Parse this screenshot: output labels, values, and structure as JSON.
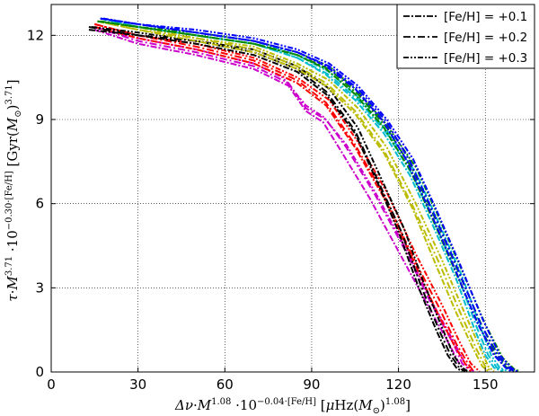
{
  "chart_data": {
    "type": "line",
    "xlabel": "Δν·M^1.08 ·10^−0.04·[Fe/H] [μHz(M⊙)^1.08]",
    "ylabel": "τ·M^3.71 ·10^−0.30·[Fe/H] [Gyr(M⊙)^3.71]",
    "xlim": [
      0,
      167
    ],
    "ylim": [
      0,
      13.1
    ],
    "xticks": [
      "0",
      "30",
      "60",
      "90",
      "120",
      "150"
    ],
    "xtick_values": [
      0,
      30,
      60,
      90,
      120,
      150
    ],
    "yticks": [
      "0",
      "3",
      "6",
      "9",
      "12"
    ],
    "ytick_values": [
      0,
      3,
      6,
      9,
      12
    ],
    "grid": true,
    "legend_placement": "top-right",
    "legend": [
      {
        "label": "[Fe/H] = +0.1",
        "dash": "dashdot1"
      },
      {
        "label": "[Fe/H] = +0.2",
        "dash": "dashdot2"
      },
      {
        "label": "[Fe/H] = +0.3",
        "dash": "dashdot3"
      }
    ],
    "series": [
      {
        "color": "#cc00cc",
        "dash": "dashdot1",
        "x": [
          15,
          30,
          50,
          70,
          82,
          88,
          94,
          100,
          110,
          120,
          130,
          138,
          141,
          143
        ],
        "y": [
          12.2,
          11.7,
          11.3,
          10.8,
          10.2,
          9.3,
          8.9,
          7.9,
          6.2,
          4.3,
          2.4,
          0.9,
          0.3,
          0.02
        ]
      },
      {
        "color": "#cc00cc",
        "dash": "dashdot2",
        "x": [
          15,
          30,
          50,
          70,
          82,
          88,
          95,
          102,
          112,
          122,
          131,
          139,
          142,
          145
        ],
        "y": [
          12.3,
          11.8,
          11.4,
          10.9,
          10.3,
          9.4,
          9.0,
          8.0,
          6.3,
          4.4,
          2.5,
          1.0,
          0.3,
          0.02
        ]
      },
      {
        "color": "#cc00cc",
        "dash": "dashdot3",
        "x": [
          15,
          30,
          50,
          70,
          80,
          88,
          94,
          102,
          112,
          122,
          131,
          139,
          143,
          146
        ],
        "y": [
          12.3,
          11.9,
          11.5,
          11.0,
          10.5,
          9.5,
          9.1,
          8.1,
          6.4,
          4.5,
          2.6,
          1.1,
          0.3,
          0.02
        ]
      },
      {
        "color": "#ff0000",
        "dash": "dashdot1",
        "x": [
          15,
          30,
          50,
          70,
          85,
          95,
          105,
          115,
          125,
          133,
          139,
          143,
          145
        ],
        "y": [
          12.3,
          11.9,
          11.5,
          11.0,
          10.3,
          9.5,
          8.0,
          6.2,
          4.0,
          2.2,
          1.0,
          0.3,
          0.02
        ]
      },
      {
        "color": "#ff0000",
        "dash": "dashdot2",
        "x": [
          15,
          30,
          50,
          70,
          85,
          95,
          105,
          115,
          125,
          134,
          140,
          144,
          146
        ],
        "y": [
          12.4,
          12.0,
          11.6,
          11.1,
          10.4,
          9.6,
          8.1,
          6.3,
          4.1,
          2.3,
          1.0,
          0.3,
          0.02
        ]
      },
      {
        "color": "#ff0000",
        "dash": "dashdot3",
        "x": [
          15,
          30,
          50,
          70,
          85,
          96,
          106,
          116,
          126,
          135,
          141,
          145,
          148
        ],
        "y": [
          12.4,
          12.0,
          11.7,
          11.2,
          10.5,
          9.7,
          8.2,
          6.4,
          4.2,
          2.4,
          1.1,
          0.3,
          0.02
        ]
      },
      {
        "color": "#000000",
        "dash": "dashdot1",
        "x": [
          13,
          30,
          50,
          70,
          85,
          95,
          105,
          113,
          120,
          127,
          133,
          137,
          140,
          142
        ],
        "y": [
          12.2,
          12.0,
          11.7,
          11.3,
          10.7,
          9.9,
          8.5,
          6.7,
          5.0,
          3.0,
          1.5,
          0.6,
          0.15,
          0.02
        ]
      },
      {
        "color": "#000000",
        "dash": "dashdot2",
        "x": [
          13,
          30,
          50,
          70,
          85,
          95,
          105,
          113,
          121,
          128,
          134,
          138,
          141,
          143
        ],
        "y": [
          12.3,
          12.0,
          11.8,
          11.4,
          10.8,
          10.0,
          8.6,
          6.8,
          5.0,
          3.0,
          1.5,
          0.6,
          0.15,
          0.02
        ]
      },
      {
        "color": "#000000",
        "dash": "dashdot3",
        "x": [
          14,
          30,
          50,
          70,
          85,
          96,
          106,
          114,
          122,
          129,
          135,
          139,
          142,
          144
        ],
        "y": [
          12.3,
          12.1,
          11.8,
          11.5,
          10.9,
          10.1,
          8.7,
          6.9,
          5.1,
          3.1,
          1.6,
          0.6,
          0.15,
          0.02
        ]
      },
      {
        "color": "#bbbb00",
        "dash": "dashdot1",
        "x": [
          16,
          30,
          50,
          70,
          85,
          95,
          105,
          115,
          125,
          133,
          140,
          146,
          149,
          151
        ],
        "y": [
          12.5,
          12.2,
          11.8,
          11.4,
          10.8,
          10.2,
          9.2,
          7.8,
          5.8,
          3.8,
          2.1,
          0.8,
          0.2,
          0.02
        ]
      },
      {
        "color": "#bbbb00",
        "dash": "dashdot2",
        "x": [
          16,
          30,
          50,
          70,
          85,
          95,
          105,
          115,
          125,
          134,
          141,
          147,
          150,
          152
        ],
        "y": [
          12.5,
          12.2,
          11.9,
          11.5,
          10.9,
          10.3,
          9.3,
          7.9,
          5.9,
          3.9,
          2.2,
          0.8,
          0.2,
          0.02
        ]
      },
      {
        "color": "#bbbb00",
        "dash": "dashdot3",
        "x": [
          17,
          30,
          50,
          70,
          85,
          96,
          106,
          116,
          126,
          135,
          142,
          148,
          151,
          153
        ],
        "y": [
          12.5,
          12.3,
          11.9,
          11.6,
          11.0,
          10.4,
          9.4,
          8.0,
          6.0,
          4.0,
          2.3,
          0.9,
          0.2,
          0.02
        ]
      },
      {
        "color": "#00bbcc",
        "dash": "dashdot1",
        "x": [
          17,
          30,
          50,
          70,
          85,
          95,
          105,
          115,
          124,
          132,
          140,
          146,
          150,
          153,
          156
        ],
        "y": [
          12.6,
          12.3,
          12.0,
          11.7,
          11.2,
          10.6,
          9.7,
          8.5,
          7.0,
          5.2,
          3.3,
          1.6,
          0.6,
          0.15,
          0.02
        ]
      },
      {
        "color": "#00bbcc",
        "dash": "dashdot2",
        "x": [
          17,
          30,
          50,
          70,
          85,
          96,
          106,
          116,
          125,
          133,
          141,
          147,
          151,
          154,
          157
        ],
        "y": [
          12.6,
          12.3,
          12.0,
          11.7,
          11.2,
          10.6,
          9.7,
          8.5,
          7.0,
          5.2,
          3.3,
          1.6,
          0.6,
          0.15,
          0.02
        ]
      },
      {
        "color": "#00bbcc",
        "dash": "dashdot3",
        "x": [
          18,
          30,
          50,
          70,
          85,
          96,
          106,
          116,
          126,
          134,
          142,
          148,
          152,
          155,
          158
        ],
        "y": [
          12.6,
          12.4,
          12.1,
          11.8,
          11.3,
          10.7,
          9.8,
          8.6,
          7.1,
          5.3,
          3.4,
          1.7,
          0.6,
          0.15,
          0.02
        ]
      },
      {
        "color": "#008800",
        "dash": "dashdot1",
        "x": [
          16,
          30,
          50,
          70,
          85,
          95,
          105,
          115,
          124,
          132,
          140,
          148,
          154,
          158,
          160
        ],
        "y": [
          12.5,
          12.3,
          12.0,
          11.7,
          11.3,
          10.8,
          9.9,
          8.7,
          7.2,
          5.4,
          3.5,
          1.6,
          0.5,
          0.1,
          0.02
        ]
      },
      {
        "color": "#008800",
        "dash": "dashdot2",
        "x": [
          16,
          30,
          50,
          70,
          85,
          96,
          106,
          116,
          125,
          133,
          141,
          149,
          155,
          159,
          161
        ],
        "y": [
          12.5,
          12.3,
          12.0,
          11.7,
          11.3,
          10.8,
          9.9,
          8.7,
          7.2,
          5.4,
          3.5,
          1.6,
          0.5,
          0.1,
          0.02
        ]
      },
      {
        "color": "#008800",
        "dash": "dashdot3",
        "x": [
          17,
          30,
          50,
          70,
          85,
          96,
          106,
          116,
          126,
          134,
          142,
          150,
          156,
          160,
          162
        ],
        "y": [
          12.5,
          12.3,
          12.1,
          11.8,
          11.4,
          10.9,
          10.0,
          8.8,
          7.3,
          5.5,
          3.6,
          1.7,
          0.5,
          0.1,
          0.02
        ]
      },
      {
        "color": "#0000ff",
        "dash": "dashdot1",
        "x": [
          17,
          30,
          50,
          70,
          85,
          95,
          105,
          115,
          123,
          131,
          139,
          147,
          153,
          157,
          159
        ],
        "y": [
          12.6,
          12.4,
          12.1,
          11.8,
          11.4,
          10.9,
          10.1,
          8.9,
          7.5,
          5.7,
          3.8,
          1.8,
          0.6,
          0.15,
          0.02
        ]
      },
      {
        "color": "#0000ff",
        "dash": "dashdot2",
        "x": [
          17,
          30,
          50,
          70,
          85,
          96,
          106,
          116,
          124,
          132,
          140,
          148,
          154,
          158,
          160
        ],
        "y": [
          12.6,
          12.4,
          12.1,
          11.8,
          11.4,
          10.9,
          10.1,
          8.9,
          7.5,
          5.7,
          3.8,
          1.8,
          0.6,
          0.15,
          0.02
        ]
      },
      {
        "color": "#0000ff",
        "dash": "dashdot3",
        "x": [
          18,
          30,
          50,
          70,
          85,
          96,
          106,
          116,
          125,
          133,
          141,
          149,
          155,
          159,
          161
        ],
        "y": [
          12.6,
          12.4,
          12.2,
          11.9,
          11.5,
          11.0,
          10.2,
          9.0,
          7.6,
          5.8,
          3.9,
          1.9,
          0.6,
          0.15,
          0.02
        ]
      }
    ]
  }
}
